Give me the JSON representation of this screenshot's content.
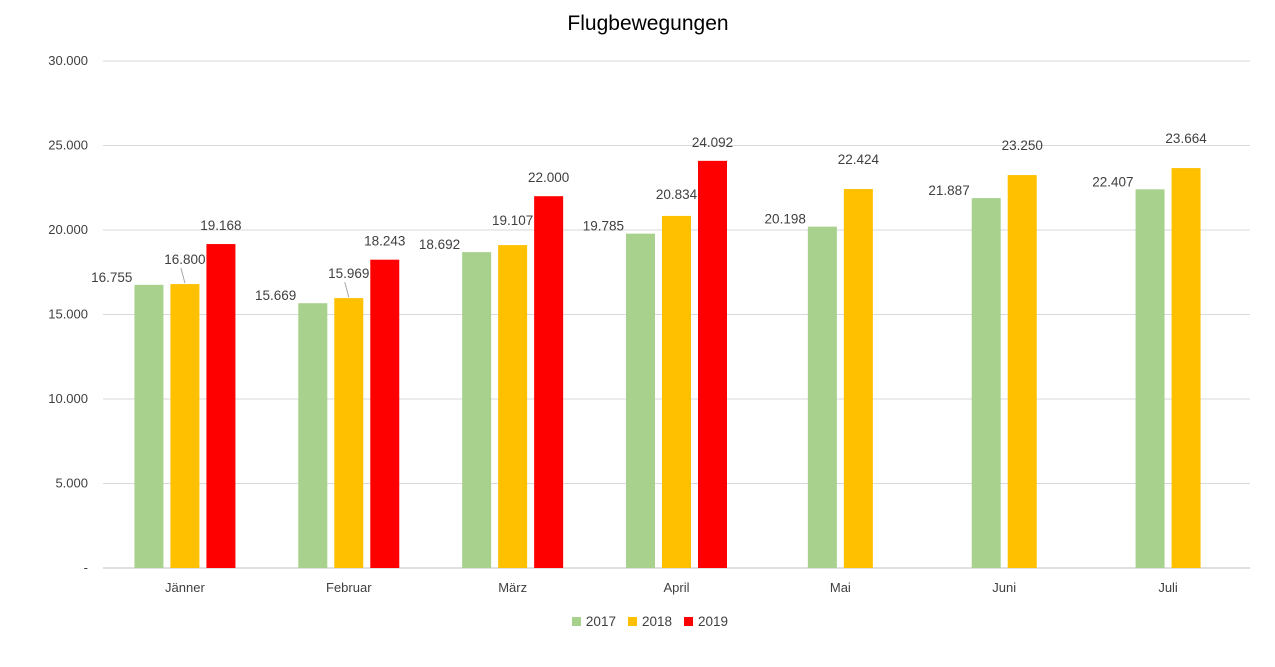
{
  "chart_data": {
    "type": "bar",
    "title": "Flugbewegungen",
    "categories": [
      "Jänner",
      "Februar",
      "März",
      "April",
      "Mai",
      "Juni",
      "Juli"
    ],
    "series": [
      {
        "name": "2017",
        "color": "#A9D18E",
        "values": [
          16755,
          15669,
          18692,
          19785,
          20198,
          21887,
          22407
        ],
        "labels": [
          "16.755",
          "15.669",
          "18.692",
          "19.785",
          "20.198",
          "21.887",
          "22.407"
        ]
      },
      {
        "name": "2018",
        "color": "#FFC000",
        "values": [
          16800,
          15969,
          19107,
          20834,
          22424,
          23250,
          23664
        ],
        "labels": [
          "16.800",
          "15.969",
          "19.107",
          "20.834",
          "22.424",
          "23.250",
          "23.664"
        ]
      },
      {
        "name": "2019",
        "color": "#FF0000",
        "values": [
          19168,
          18243,
          22000,
          24092,
          null,
          null,
          null
        ],
        "labels": [
          "19.168",
          "18.243",
          "22.000",
          "24.092",
          "",
          "",
          ""
        ]
      }
    ],
    "ylim": [
      0,
      30000
    ],
    "yticks": [
      0,
      5000,
      10000,
      15000,
      20000,
      25000,
      30000
    ],
    "ytick_labels": [
      "-",
      "5.000",
      "10.000",
      "15.000",
      "20.000",
      "25.000",
      "30.000"
    ],
    "xlabel": "",
    "ylabel": "",
    "grid": true,
    "legend_position": "bottom"
  }
}
